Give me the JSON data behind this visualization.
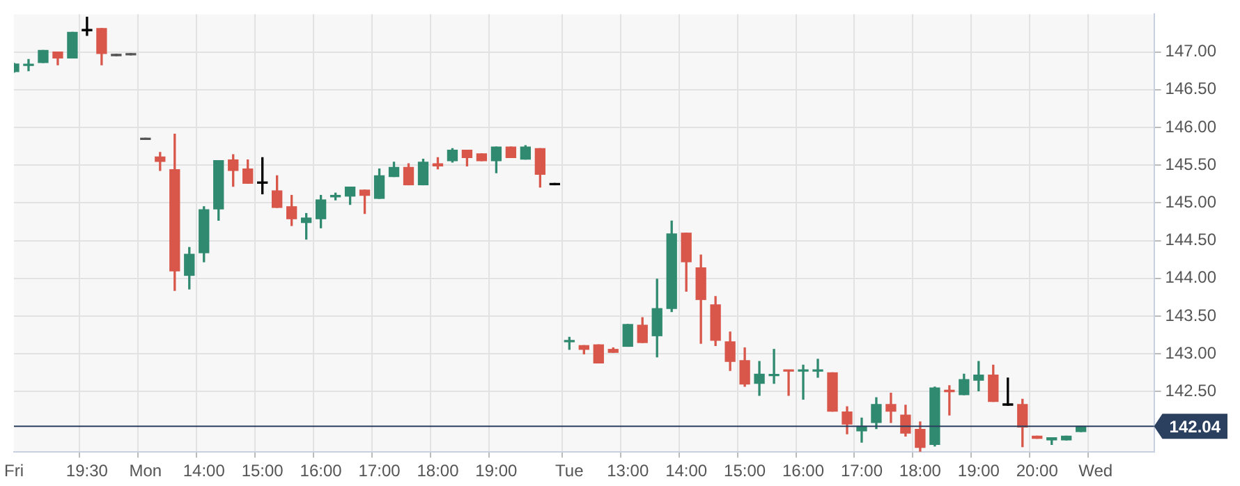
{
  "chart_data": {
    "type": "candlestick",
    "categories": [
      "Fri",
      null,
      null,
      null,
      null,
      "19:30",
      null,
      null,
      null,
      "Mon",
      null,
      null,
      null,
      "14:00",
      null,
      null,
      null,
      "15:00",
      null,
      null,
      null,
      "16:00",
      null,
      null,
      null,
      "17:00",
      null,
      null,
      null,
      "18:00",
      null,
      null,
      null,
      "19:00",
      null,
      null,
      null,
      null,
      "Tue",
      null,
      null,
      null,
      "13:00",
      null,
      null,
      null,
      "14:00",
      null,
      null,
      null,
      "15:00",
      null,
      null,
      null,
      "16:00",
      null,
      null,
      null,
      "17:00",
      null,
      null,
      null,
      "18:00",
      null,
      null,
      null,
      "19:00",
      null,
      null,
      null,
      "20:00",
      null,
      null,
      null,
      "Wed",
      null,
      null,
      null,
      null
    ],
    "ohlc": [
      [
        146.74,
        146.85,
        146.73,
        146.84
      ],
      [
        146.82,
        146.9,
        146.75,
        146.83
      ],
      [
        146.86,
        147.02,
        146.86,
        147.02
      ],
      [
        147.0,
        147.0,
        146.83,
        146.92
      ],
      [
        146.92,
        147.26,
        146.92,
        147.26
      ],
      [
        147.28,
        147.46,
        147.22,
        147.28
      ],
      [
        147.31,
        147.31,
        146.83,
        146.98
      ],
      [
        146.95,
        146.95,
        146.95,
        146.95
      ],
      [
        146.96,
        146.96,
        146.96,
        146.96
      ],
      [
        145.84,
        145.84,
        145.84,
        145.84
      ],
      [
        145.61,
        145.67,
        145.43,
        145.55
      ],
      [
        145.44,
        145.91,
        143.84,
        144.1
      ],
      [
        144.04,
        144.41,
        143.86,
        144.32
      ],
      [
        144.34,
        144.95,
        144.22,
        144.91
      ],
      [
        144.92,
        145.56,
        144.77,
        145.56
      ],
      [
        145.57,
        145.64,
        145.22,
        145.43
      ],
      [
        145.45,
        145.57,
        145.26,
        145.26
      ],
      [
        145.26,
        145.6,
        145.12,
        145.26
      ],
      [
        145.16,
        145.36,
        144.94,
        144.94
      ],
      [
        144.95,
        145.1,
        144.7,
        144.79
      ],
      [
        144.74,
        144.86,
        144.52,
        144.8
      ],
      [
        144.79,
        145.1,
        144.67,
        145.04
      ],
      [
        145.08,
        145.13,
        145.04,
        145.1
      ],
      [
        145.09,
        145.21,
        144.98,
        145.21
      ],
      [
        145.17,
        145.17,
        144.86,
        145.1
      ],
      [
        145.06,
        145.45,
        145.06,
        145.36
      ],
      [
        145.35,
        145.54,
        145.35,
        145.47
      ],
      [
        145.47,
        145.52,
        145.24,
        145.24
      ],
      [
        145.24,
        145.58,
        145.24,
        145.54
      ],
      [
        145.52,
        145.6,
        145.45,
        145.49
      ],
      [
        145.56,
        145.72,
        145.54,
        145.7
      ],
      [
        145.7,
        145.7,
        145.49,
        145.6
      ],
      [
        145.65,
        145.65,
        145.56,
        145.56
      ],
      [
        145.56,
        145.74,
        145.4,
        145.74
      ],
      [
        145.74,
        145.74,
        145.6,
        145.6
      ],
      [
        145.58,
        145.76,
        145.58,
        145.74
      ],
      [
        145.72,
        145.72,
        145.21,
        145.38
      ],
      [
        145.24,
        145.24,
        145.24,
        145.24
      ],
      [
        143.16,
        143.22,
        143.06,
        143.17
      ],
      [
        143.11,
        143.11,
        143.0,
        143.06
      ],
      [
        143.12,
        143.12,
        142.88,
        142.88
      ],
      [
        143.06,
        143.08,
        143.02,
        143.02
      ],
      [
        143.1,
        143.39,
        143.1,
        143.39
      ],
      [
        143.38,
        143.48,
        143.15,
        143.15
      ],
      [
        143.24,
        143.99,
        142.96,
        143.6
      ],
      [
        143.6,
        144.76,
        143.56,
        144.59
      ],
      [
        144.6,
        144.6,
        143.83,
        144.22
      ],
      [
        144.14,
        144.31,
        143.14,
        143.72
      ],
      [
        143.65,
        143.76,
        143.11,
        143.18
      ],
      [
        143.16,
        143.29,
        142.78,
        142.9
      ],
      [
        142.91,
        143.08,
        142.57,
        142.6
      ],
      [
        142.61,
        142.9,
        142.45,
        142.73
      ],
      [
        142.71,
        143.06,
        142.61,
        142.72
      ],
      [
        142.78,
        142.78,
        142.45,
        142.77
      ],
      [
        142.77,
        142.85,
        142.4,
        142.78
      ],
      [
        142.77,
        142.93,
        142.69,
        142.78
      ],
      [
        142.75,
        142.75,
        142.24,
        142.24
      ],
      [
        142.23,
        142.3,
        141.94,
        142.07
      ],
      [
        141.98,
        142.15,
        141.83,
        142.04
      ],
      [
        142.09,
        142.42,
        142.01,
        142.33
      ],
      [
        142.33,
        142.48,
        142.09,
        142.24
      ],
      [
        142.19,
        142.32,
        141.91,
        141.95
      ],
      [
        142.0,
        142.1,
        141.71,
        141.76
      ],
      [
        141.8,
        142.56,
        141.78,
        142.55
      ],
      [
        142.52,
        142.58,
        142.19,
        142.5
      ],
      [
        142.46,
        142.73,
        142.46,
        142.66
      ],
      [
        142.65,
        142.9,
        142.51,
        142.72
      ],
      [
        142.72,
        142.85,
        142.37,
        142.37
      ],
      [
        142.32,
        142.68,
        142.32,
        142.32
      ],
      [
        142.33,
        142.4,
        141.77,
        142.03
      ],
      [
        141.91,
        141.91,
        141.88,
        141.88
      ],
      [
        141.86,
        141.89,
        141.8,
        141.89
      ],
      [
        141.86,
        141.91,
        141.86,
        141.91
      ],
      [
        141.97,
        142.04,
        141.97,
        142.04
      ],
      null,
      null,
      null,
      null,
      null
    ],
    "colors": [
      "#2f8a6f",
      "#2f8a6f",
      "#2f8a6f",
      "#d8574a",
      "#2f8a6f",
      "#000000",
      "#d8574a",
      "#555555",
      "#555555",
      "#555555",
      "#d8574a",
      "#d8574a",
      "#2f8a6f",
      "#2f8a6f",
      "#2f8a6f",
      "#d8574a",
      "#d8574a",
      "#000000",
      "#d8574a",
      "#d8574a",
      "#2f8a6f",
      "#2f8a6f",
      "#2f8a6f",
      "#2f8a6f",
      "#d8574a",
      "#2f8a6f",
      "#2f8a6f",
      "#d8574a",
      "#2f8a6f",
      "#d8574a",
      "#2f8a6f",
      "#d8574a",
      "#d8574a",
      "#2f8a6f",
      "#d8574a",
      "#2f8a6f",
      "#d8574a",
      "#000000",
      "#2f8a6f",
      "#d8574a",
      "#d8574a",
      "#d8574a",
      "#2f8a6f",
      "#d8574a",
      "#2f8a6f",
      "#2f8a6f",
      "#d8574a",
      "#d8574a",
      "#d8574a",
      "#d8574a",
      "#d8574a",
      "#2f8a6f",
      "#2f8a6f",
      "#d8574a",
      "#2f8a6f",
      "#2f8a6f",
      "#d8574a",
      "#d8574a",
      "#2f8a6f",
      "#2f8a6f",
      "#d8574a",
      "#d8574a",
      "#d8574a",
      "#2f8a6f",
      "#d8574a",
      "#2f8a6f",
      "#2f8a6f",
      "#d8574a",
      "#000000",
      "#d8574a",
      "#d8574a",
      "#2f8a6f",
      "#2f8a6f",
      "#2f8a6f",
      null,
      null,
      null,
      null,
      null
    ],
    "ylim": [
      141.7,
      147.5
    ],
    "yticks": [
      {
        "value": 142.5,
        "label": "142.50"
      },
      {
        "value": 143,
        "label": "143.00"
      },
      {
        "value": 143.5,
        "label": "143.50"
      },
      {
        "value": 144,
        "label": "144.00"
      },
      {
        "value": 144.5,
        "label": "144.50"
      },
      {
        "value": 145,
        "label": "145.00"
      },
      {
        "value": 145.5,
        "label": "145.50"
      },
      {
        "value": 146,
        "label": "146.00"
      },
      {
        "value": 146.5,
        "label": "146.50"
      },
      {
        "value": 147,
        "label": "147.00"
      }
    ],
    "ref_lines": [
      {
        "axis": "y",
        "value": 142.04,
        "label": "142.04",
        "color": "#2b3f5f"
      }
    ],
    "grid": true,
    "legend": false
  }
}
